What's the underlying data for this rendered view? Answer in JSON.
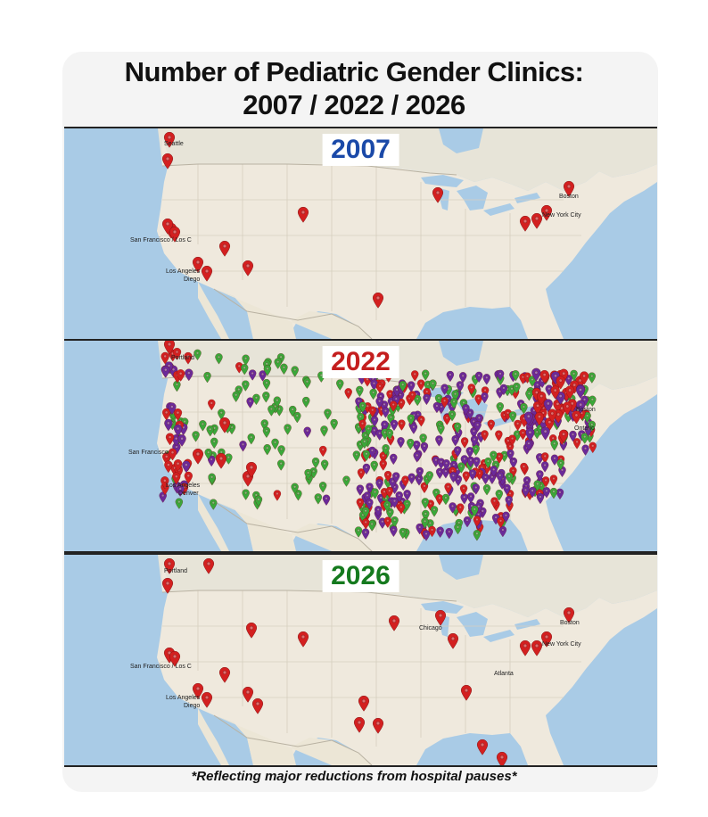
{
  "title": {
    "line1": "Number of Pediatric Gender Clinics:",
    "line2": "2007 / 2022 / 2026"
  },
  "caption": "*Reflecting major reductions from hospital pauses*",
  "colors": {
    "water": "#a9cbe6",
    "land": "#efe9dd",
    "year_2007": "#1a49a8",
    "year_2022": "#c41e1e",
    "year_2026": "#157a1e",
    "marker_red": "#d32020",
    "marker_green": "#3aa83a",
    "marker_purple": "#6a2a9a"
  },
  "panels": [
    {
      "id": "p2007",
      "year": "2007",
      "labels": [
        "Seattle",
        "Boston",
        "New York City",
        "San Francisco / Los C",
        "Los Angeles",
        "Diego"
      ],
      "markers": "red-only"
    },
    {
      "id": "p2022",
      "year": "2022",
      "labels": [
        "Portland",
        "San Francisco",
        "Los Angeles",
        "Denver",
        "Boston",
        "Ontario"
      ],
      "markers": "dense-mixed"
    },
    {
      "id": "p2026",
      "year": "2026",
      "labels": [
        "Portland",
        "Chicago",
        "Boston",
        "New York City",
        "Atlanta",
        "San Francisco / Los C",
        "Los Angeles",
        "Diego"
      ],
      "markers": "red-only"
    }
  ]
}
